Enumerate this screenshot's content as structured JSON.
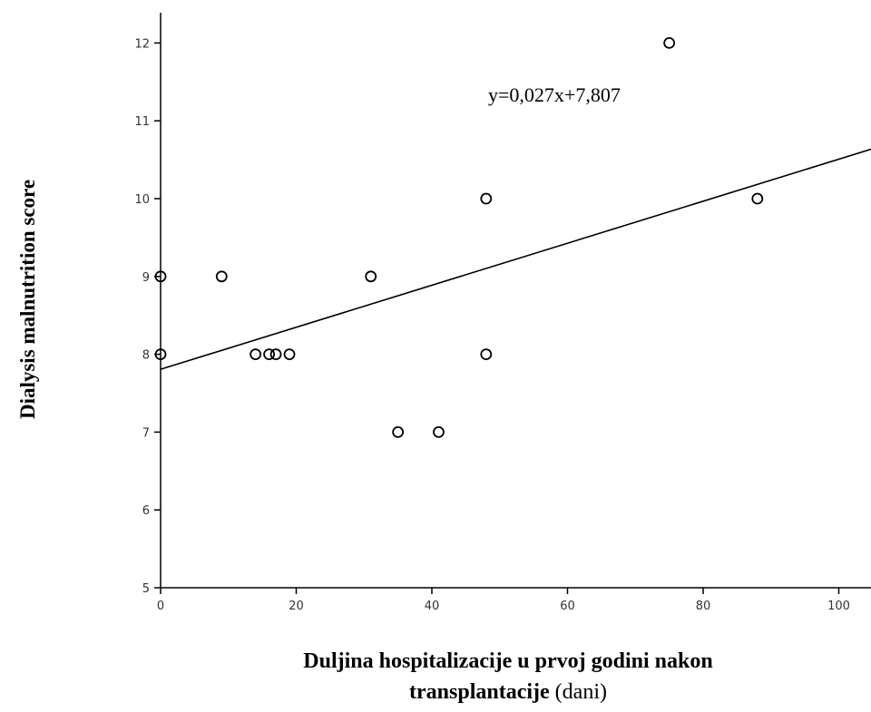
{
  "chart_data": {
    "type": "scatter",
    "xlabel": {
      "line1": "Duljina hospitalizacije u prvoj godini nakon",
      "line2_bold": "transplantacije",
      "line2_normal": " (dani)"
    },
    "ylabel": "Dialysis malnutrition score",
    "xlim": [
      0,
      105
    ],
    "ylim": [
      5,
      12.4
    ],
    "x_ticks": [
      0,
      20,
      40,
      60,
      80,
      100
    ],
    "y_ticks": [
      5,
      6,
      7,
      8,
      9,
      10,
      11,
      12
    ],
    "grid": false,
    "points": [
      {
        "x": 0,
        "y": 9
      },
      {
        "x": 0,
        "y": 8
      },
      {
        "x": 9,
        "y": 9
      },
      {
        "x": 14,
        "y": 8
      },
      {
        "x": 16,
        "y": 8
      },
      {
        "x": 17,
        "y": 8
      },
      {
        "x": 19,
        "y": 8
      },
      {
        "x": 31,
        "y": 9
      },
      {
        "x": 35,
        "y": 7
      },
      {
        "x": 41,
        "y": 7
      },
      {
        "x": 48,
        "y": 10
      },
      {
        "x": 48,
        "y": 8
      },
      {
        "x": 75,
        "y": 12
      },
      {
        "x": 88,
        "y": 10
      }
    ],
    "fit_line": {
      "slope": 0.027,
      "intercept": 7.807
    },
    "annotation": "y=0,027x+7,807"
  },
  "colors": {
    "axis": "#000000",
    "marker_stroke": "#000000",
    "fit_line": "#000000"
  }
}
